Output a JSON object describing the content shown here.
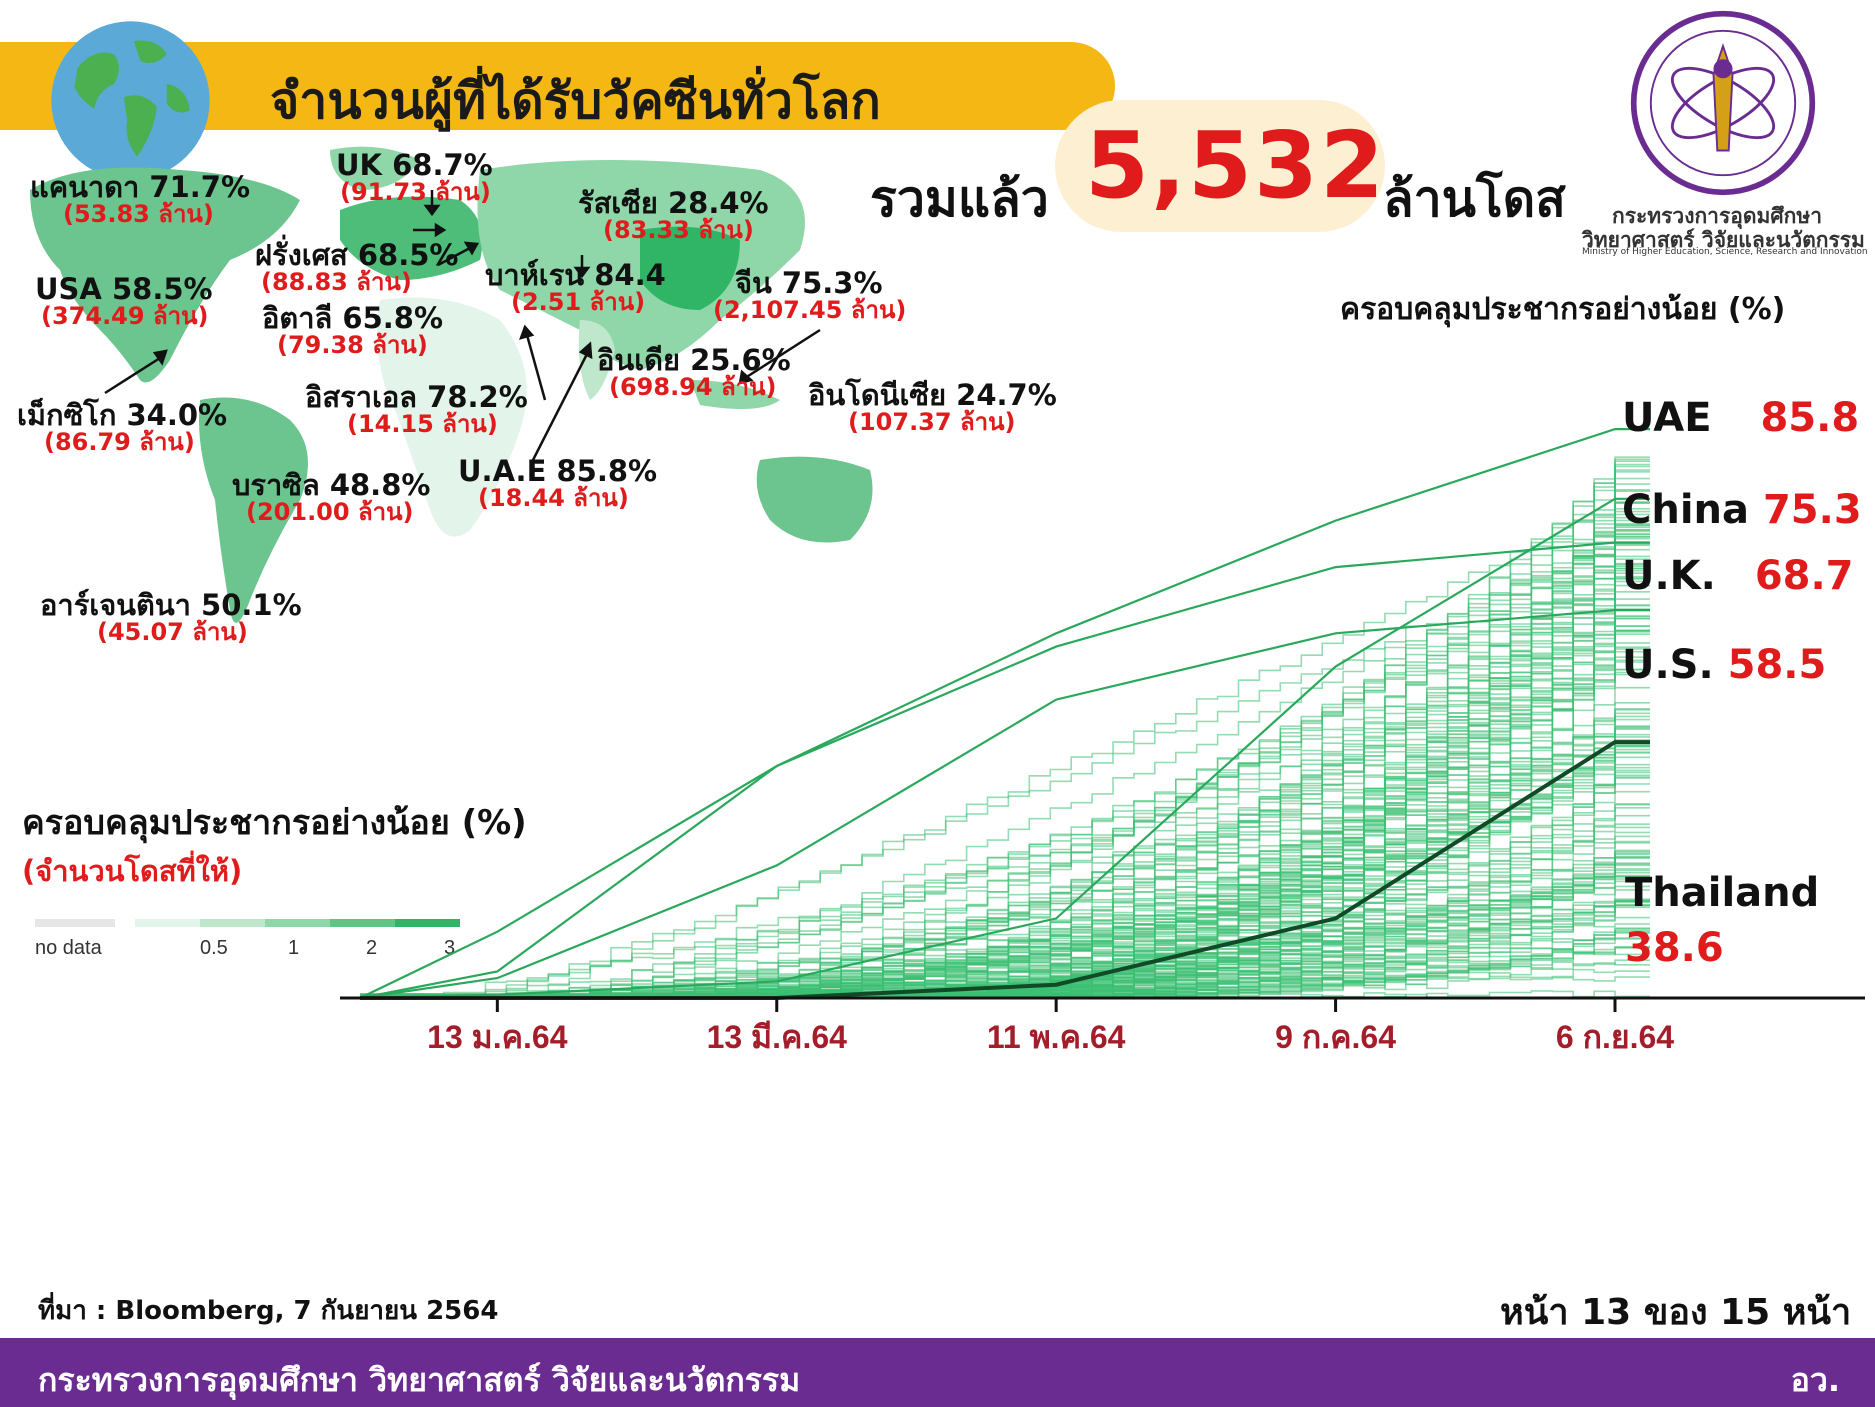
{
  "header": {
    "title": "จำนวนผู้ที่ได้รับวัคซีนทั่วโลก",
    "total_prefix": "รวมแล้ว",
    "total_value": "5,532",
    "total_suffix": "ล้านโดส"
  },
  "ministry": {
    "name_line1": "กระทรวงการอุดมศึกษา",
    "name_line2": "วิทยาศาสตร์ วิจัยและนวัตกรรม",
    "name_en": "Ministry of Higher Education, Science, Research and Innovation"
  },
  "map_labels": [
    {
      "name": "แคนาดา 71.7%",
      "doses": "(53.83 ล้าน)"
    },
    {
      "name": "UK 68.7%",
      "doses": "(91.73 ล้าน)"
    },
    {
      "name": "รัสเซีย 28.4%",
      "doses": "(83.33 ล้าน)"
    },
    {
      "name": "ฝรั่งเศส 68.5%",
      "doses": "(88.83 ล้าน)"
    },
    {
      "name": "USA 58.5%",
      "doses": "(374.49 ล้าน)"
    },
    {
      "name": "บาห์เรน 84.4",
      "doses": "(2.51 ล้าน)"
    },
    {
      "name": "จีน 75.3%",
      "doses": "(2,107.45 ล้าน)"
    },
    {
      "name": "อิตาลี 65.8%",
      "doses": "(79.38 ล้าน)"
    },
    {
      "name": "อินเดีย 25.6%",
      "doses": "(698.94 ล้าน)"
    },
    {
      "name": "อิสราเอล 78.2%",
      "doses": "(14.15 ล้าน)"
    },
    {
      "name": "อินโดนีเซีย 24.7%",
      "doses": "(107.37 ล้าน)"
    },
    {
      "name": "เม็กซิโก 34.0%",
      "doses": "(86.79 ล้าน)"
    },
    {
      "name": "U.A.E 85.8%",
      "doses": "(18.44 ล้าน)"
    },
    {
      "name": "บราซิล 48.8%",
      "doses": "(201.00 ล้าน)"
    },
    {
      "name": "อาร์เจนตินา 50.1%",
      "doses": "(45.07 ล้าน)"
    }
  ],
  "legend": {
    "title": "ครอบคลุมประชากรอย่างน้อย (%)",
    "subtitle": "(จำนวนโดสที่ให้)",
    "no_data": "no data",
    "ticks": [
      "0.5",
      "1",
      "2",
      "3"
    ],
    "colors": [
      "#e3f4ea",
      "#bfe7cc",
      "#8fd6a8",
      "#5ec585",
      "#2fb565"
    ]
  },
  "chart_data": {
    "type": "line",
    "title": "ครอบคลุมประชากรอย่างน้อย (%)",
    "xlabel": "",
    "ylabel": "",
    "x_ticks": [
      "13 ม.ค.64",
      "13 มี.ค.64",
      "11 พ.ค.64",
      "9 ก.ค.64",
      "6 ก.ย.64"
    ],
    "x_range": [
      "2020-12-15",
      "2021-09-06"
    ],
    "ylim": [
      0,
      100
    ],
    "grid": false,
    "series": [
      {
        "name": "UAE",
        "value": 85.8,
        "x": [
          "2020-12-15",
          "2021-01-13",
          "2021-03-13",
          "2021-05-11",
          "2021-07-09",
          "2021-09-06"
        ],
        "values": [
          0,
          10,
          35,
          55,
          72,
          85.8
        ]
      },
      {
        "name": "China",
        "value": 75.3,
        "x": [
          "2020-12-15",
          "2021-01-13",
          "2021-03-13",
          "2021-05-11",
          "2021-07-09",
          "2021-09-06"
        ],
        "values": [
          0,
          0.5,
          2.5,
          12,
          50,
          75.3
        ]
      },
      {
        "name": "U.K.",
        "value": 68.7,
        "x": [
          "2020-12-15",
          "2021-01-13",
          "2021-03-13",
          "2021-05-11",
          "2021-07-09",
          "2021-09-06"
        ],
        "values": [
          0,
          4,
          35,
          53,
          65,
          68.7
        ]
      },
      {
        "name": "U.S.",
        "value": 58.5,
        "x": [
          "2020-12-15",
          "2021-01-13",
          "2021-03-13",
          "2021-05-11",
          "2021-07-09",
          "2021-09-06"
        ],
        "values": [
          0,
          3,
          20,
          45,
          55,
          58.5
        ]
      },
      {
        "name": "Thailand",
        "value": 38.6,
        "x": [
          "2020-12-15",
          "2021-01-13",
          "2021-03-13",
          "2021-05-11",
          "2021-07-09",
          "2021-09-06"
        ],
        "values": [
          0,
          0,
          0,
          2,
          12,
          38.6
        ]
      }
    ]
  },
  "value_labels": [
    {
      "name": "UAE",
      "value": "85.8"
    },
    {
      "name": "China",
      "value": "75.3"
    },
    {
      "name": "U.K.",
      "value": "68.7"
    },
    {
      "name": "U.S.",
      "value": "58.5"
    },
    {
      "name": "Thailand",
      "value": "38.6"
    }
  ],
  "footer": {
    "source": "ที่มา : Bloomberg, 7 กันยายน 2564",
    "page": "หน้า 13 ของ 15 หน้า",
    "ministry_full": "กระทรวงการอุดมศึกษา วิทยาศาสตร์ วิจัยและนวัตกรรม",
    "abbr": "อว."
  }
}
